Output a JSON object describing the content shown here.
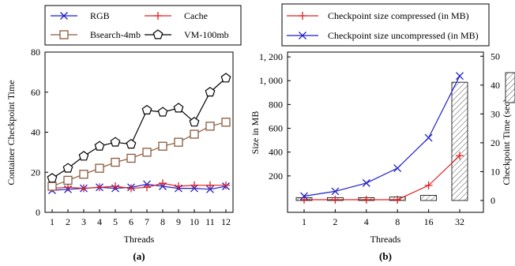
{
  "chart_data": [
    {
      "type": "line",
      "panel_label": "(a)",
      "xlabel": "Threads",
      "ylabel": "Container Checkpoint Time",
      "x": [
        1,
        2,
        3,
        4,
        5,
        6,
        7,
        8,
        9,
        10,
        11,
        12
      ],
      "ylim": [
        0,
        80
      ],
      "yticks": [
        0,
        20,
        40,
        60,
        80
      ],
      "grid": false,
      "legend_position": "top",
      "series": [
        {
          "name": "RGB",
          "color": "#1f1fcc",
          "marker": "x",
          "values": [
            11,
            11.5,
            12,
            12.5,
            12,
            12.5,
            14,
            13,
            12,
            12,
            11.5,
            13
          ]
        },
        {
          "name": "Cache",
          "color": "#e02020",
          "marker": "plus",
          "values": [
            12,
            12.5,
            12,
            12.5,
            13,
            12,
            12.5,
            14.5,
            13,
            13.5,
            13.5,
            13.5
          ]
        },
        {
          "name": "Bsearch-4mb",
          "color": "#8b5a3c",
          "marker": "square",
          "values": [
            13,
            16,
            19,
            22,
            25,
            27,
            30,
            33,
            35,
            39,
            43,
            45
          ]
        },
        {
          "name": "VM-100mb",
          "color": "#000000",
          "marker": "pentagon",
          "values": [
            17,
            22,
            28,
            33,
            35,
            34,
            51,
            50,
            52,
            45,
            60,
            67
          ]
        }
      ]
    },
    {
      "type": "bar+line",
      "panel_label": "(b)",
      "xlabel": "Threads",
      "ylabel": "Size in MB",
      "y2label": "Checkpoint Time (sec)",
      "categories": [
        "1",
        "2",
        "4",
        "8",
        "16",
        "32"
      ],
      "ylim": [
        0,
        1300
      ],
      "yticks": [
        200,
        400,
        600,
        800,
        1000,
        1200
      ],
      "ytick_labels": [
        "200",
        "400",
        "600",
        "800",
        "1, 000",
        "1, 200"
      ],
      "y2lim": [
        0,
        55
      ],
      "y2ticks": [
        0,
        10,
        20,
        30,
        40,
        50
      ],
      "grid": false,
      "legend_position": "top",
      "series": [
        {
          "name": "Checkpoint size compressed (in MB)",
          "type": "line",
          "axis": "left",
          "color": "#e02020",
          "marker": "plus",
          "values": [
            0,
            0,
            0,
            0,
            120,
            370
          ]
        },
        {
          "name": "Checkpoint size uncompressed (in MB)",
          "type": "line",
          "axis": "left",
          "color": "#1f1fcc",
          "marker": "x",
          "values": [
            30,
            70,
            140,
            265,
            520,
            1040
          ]
        },
        {
          "type": "bar",
          "axis": "right",
          "hatch": "diagonal",
          "values": [
            1,
            1,
            1,
            1.2,
            1.8,
            41
          ]
        }
      ]
    }
  ]
}
